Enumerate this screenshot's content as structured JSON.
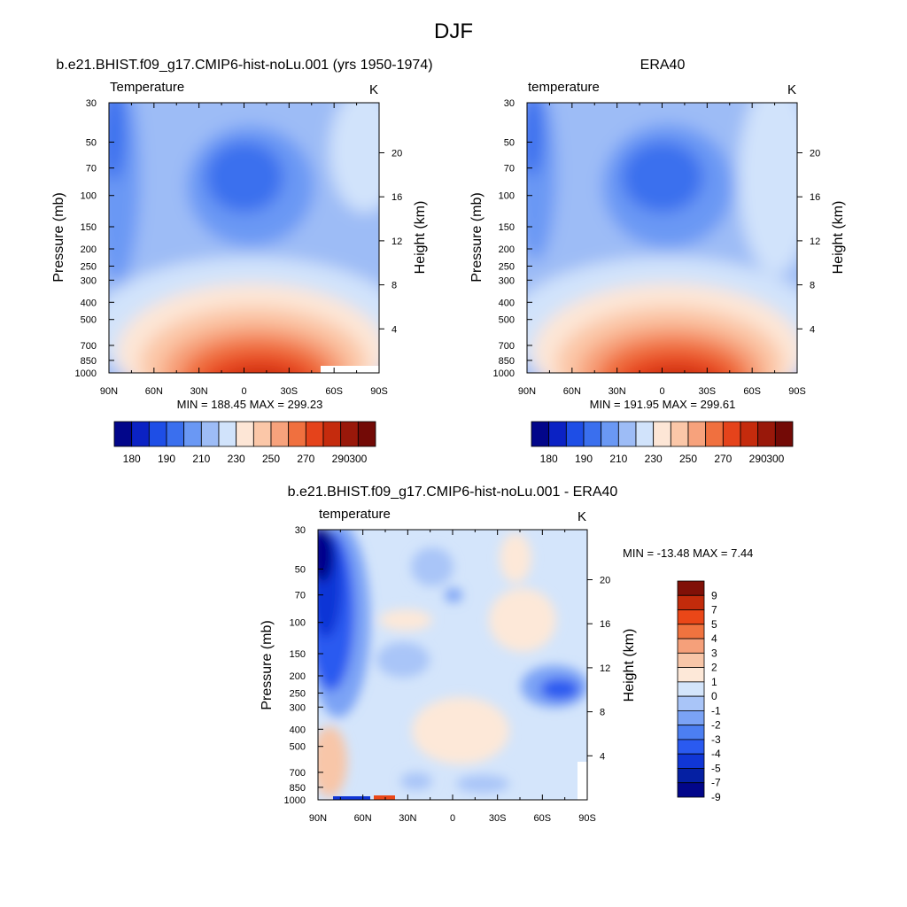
{
  "page_title": "DJF",
  "colors": {
    "temperature_scale": [
      "#02068a",
      "#0b22c4",
      "#1e4ee6",
      "#3a6fee",
      "#6a98f4",
      "#9dbcf6",
      "#d1e3fb",
      "#fde6d6",
      "#fbc7a8",
      "#f7a27c",
      "#f0703f",
      "#e5431b",
      "#c52b0d",
      "#99180a",
      "#730a06"
    ],
    "difference_scale": [
      "#02068a",
      "#0520a3",
      "#1036d6",
      "#2a5af0",
      "#4c7ff2",
      "#7ba3f5",
      "#a9c5f8",
      "#d4e5fb",
      "#fde8d8",
      "#f8c6a8",
      "#f5a07a",
      "#f0733f",
      "#ea4718",
      "#c22b0b",
      "#801007"
    ]
  },
  "chart_data": [
    {
      "type": "heatmap",
      "id": "model",
      "title": "b.e21.BHIST.f09_g17.CMIP6-hist-noLu.001 (yrs 1950-1974)",
      "subtitle_left": "Temperature",
      "subtitle_right": "K",
      "ylabel": "Pressure (mb)",
      "ylabel_right": "Height (km)",
      "x_ticks": [
        "90N",
        "60N",
        "30N",
        "0",
        "30S",
        "60S",
        "90S"
      ],
      "y_ticks": [
        "30",
        "50",
        "70",
        "100",
        "150",
        "200",
        "250",
        "300",
        "400",
        "500",
        "700",
        "850",
        "1000"
      ],
      "y_ticks_right": [
        "20",
        "16",
        "12",
        "8",
        "4"
      ],
      "stats_text": "MIN = 188.45  MAX = 299.23",
      "min": 188.45,
      "max": 299.23,
      "colorbar_labels": [
        "180",
        "190",
        "210",
        "230",
        "250",
        "270",
        "290",
        "300"
      ]
    },
    {
      "type": "heatmap",
      "id": "obs",
      "title": "ERA40",
      "subtitle_left": "temperature",
      "subtitle_right": "K",
      "ylabel": "Pressure (mb)",
      "ylabel_right": "Height (km)",
      "x_ticks": [
        "90N",
        "60N",
        "30N",
        "0",
        "30S",
        "60S",
        "90S"
      ],
      "y_ticks": [
        "30",
        "50",
        "70",
        "100",
        "150",
        "200",
        "250",
        "300",
        "400",
        "500",
        "700",
        "850",
        "1000"
      ],
      "y_ticks_right": [
        "20",
        "16",
        "12",
        "8",
        "4"
      ],
      "stats_text": "MIN = 191.95  MAX = 299.61",
      "min": 191.95,
      "max": 299.61,
      "colorbar_labels": [
        "180",
        "190",
        "210",
        "230",
        "250",
        "270",
        "290",
        "300"
      ]
    },
    {
      "type": "heatmap",
      "id": "diff",
      "title": "b.e21.BHIST.f09_g17.CMIP6-hist-noLu.001 - ERA40",
      "subtitle_left": "temperature",
      "subtitle_right": "K",
      "ylabel": "Pressure (mb)",
      "ylabel_right": "Height (km)",
      "x_ticks": [
        "90N",
        "60N",
        "30N",
        "0",
        "30S",
        "60S",
        "90S"
      ],
      "y_ticks": [
        "30",
        "50",
        "70",
        "100",
        "150",
        "200",
        "250",
        "300",
        "400",
        "500",
        "700",
        "850",
        "1000"
      ],
      "y_ticks_right": [
        "20",
        "16",
        "12",
        "8",
        "4"
      ],
      "stats_text": "MIN = -13.48  MAX =   7.44",
      "min": -13.48,
      "max": 7.44,
      "colorbar_labels": [
        "9",
        "7",
        "5",
        "4",
        "3",
        "2",
        "1",
        "0",
        "-1",
        "-2",
        "-3",
        "-4",
        "-5",
        "-7",
        "-9"
      ]
    }
  ]
}
